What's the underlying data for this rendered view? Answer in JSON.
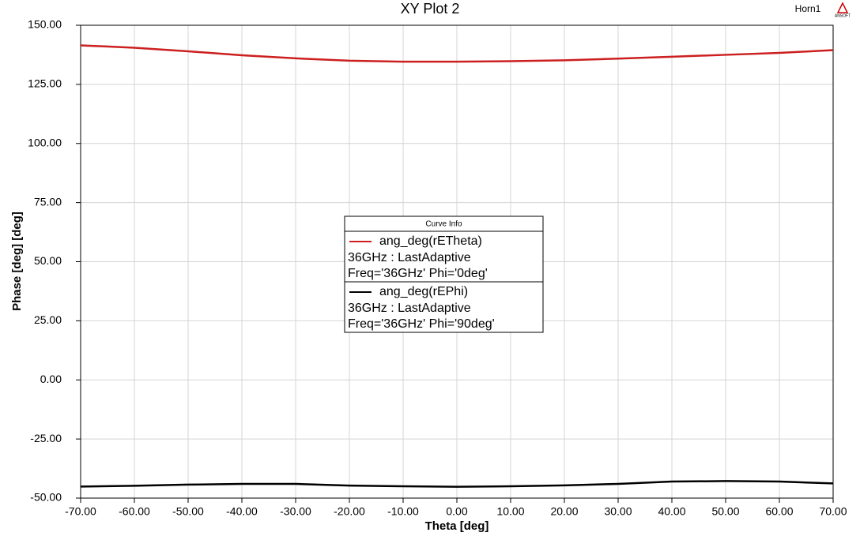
{
  "chart_data": {
    "type": "line",
    "title": "XY Plot 2",
    "design_name": "Horn1",
    "logo": "ANSOFT",
    "xlabel": "Theta [deg]",
    "ylabel": "Phase [deg] [deg]",
    "legend_title": "Curve Info",
    "grid": true,
    "x": [
      -70,
      -60,
      -50,
      -40,
      -30,
      -20,
      -10,
      0,
      10,
      20,
      30,
      40,
      50,
      60,
      70
    ],
    "series": [
      {
        "name": "ang_deg(rETheta)",
        "color": "#cc1f1f",
        "info": [
          "36GHz : LastAdaptive",
          "Freq='36GHz' Phi='0deg'"
        ],
        "values": [
          141.5,
          140.5,
          139,
          137.3,
          136,
          135,
          134.6,
          134.6,
          134.8,
          135.2,
          135.9,
          136.7,
          137.5,
          138.3,
          139.5
        ]
      },
      {
        "name": "ang_deg(rEPhi)",
        "color": "#000000",
        "info": [
          "36GHz : LastAdaptive",
          "Freq='36GHz' Phi='90deg'"
        ],
        "values": [
          -45.1,
          -44.8,
          -44.3,
          -44,
          -44,
          -44.7,
          -45,
          -45.2,
          -45,
          -44.6,
          -44,
          -43,
          -42.8,
          -43,
          -43.8
        ]
      }
    ],
    "xlim": [
      -70,
      70
    ],
    "xticks": [
      {
        "value": -70,
        "label": "-70.00"
      },
      {
        "value": -60,
        "label": "-60.00"
      },
      {
        "value": -50,
        "label": "-50.00"
      },
      {
        "value": -40,
        "label": "-40.00"
      },
      {
        "value": -30,
        "label": "-30.00"
      },
      {
        "value": -20,
        "label": "-20.00"
      },
      {
        "value": -10,
        "label": "-10.00"
      },
      {
        "value": 0,
        "label": "0.00"
      },
      {
        "value": 10,
        "label": "10.00"
      },
      {
        "value": 20,
        "label": "20.00"
      },
      {
        "value": 30,
        "label": "30.00"
      },
      {
        "value": 40,
        "label": "40.00"
      },
      {
        "value": 50,
        "label": "50.00"
      },
      {
        "value": 60,
        "label": "60.00"
      },
      {
        "value": 70,
        "label": "70.00"
      }
    ],
    "ylim": [
      -50,
      150
    ],
    "yticks": [
      {
        "value": -50,
        "label": "-50.00"
      },
      {
        "value": -25,
        "label": "-25.00"
      },
      {
        "value": 0,
        "label": "0.00"
      },
      {
        "value": 25,
        "label": "25.00"
      },
      {
        "value": 50,
        "label": "50.00"
      },
      {
        "value": 75,
        "label": "75.00"
      },
      {
        "value": 100,
        "label": "100.00"
      },
      {
        "value": 125,
        "label": "125.00"
      },
      {
        "value": 150,
        "label": "150.00"
      }
    ]
  }
}
